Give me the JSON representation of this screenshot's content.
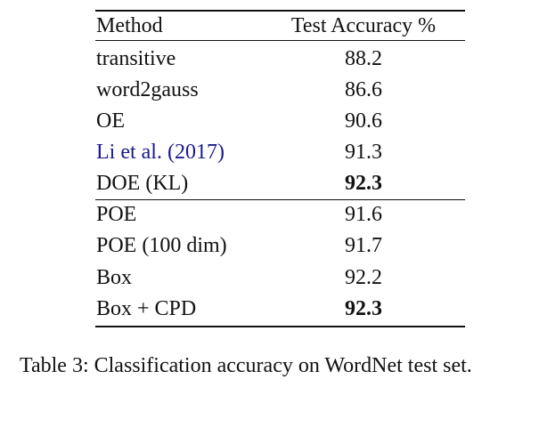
{
  "table": {
    "header": [
      "Method",
      "Test Accuracy %"
    ],
    "rows": [
      [
        "transitive",
        "88.2"
      ],
      [
        "word2gauss",
        "86.6"
      ],
      [
        "OE",
        "90.6"
      ],
      [
        "Li et al. (2017)",
        "91.3"
      ],
      [
        "DOE (KL)",
        "92.3"
      ],
      [
        "POE",
        "91.6"
      ],
      [
        "POE (100 dim)",
        "91.7"
      ],
      [
        "Box",
        "92.2"
      ],
      [
        "Box + CPD",
        "92.3"
      ]
    ]
  },
  "caption": "Table 3: Classification accuracy on WordNet test set."
}
